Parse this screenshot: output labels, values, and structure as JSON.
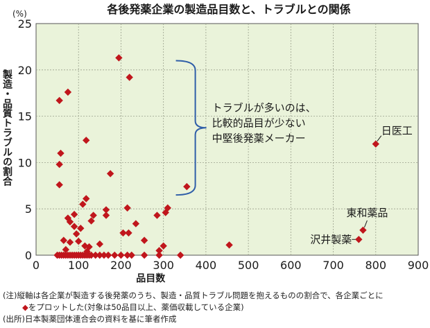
{
  "chart_data": {
    "type": "scatter",
    "title": "各後発薬企業の製造品目数と、トラブルとの関係",
    "xlabel": "品目数",
    "ylabel": "製造・品質トラブルの割合",
    "yunit": "(%)",
    "xlim": [
      0,
      900
    ],
    "ylim": [
      0,
      25
    ],
    "xticks": [
      0,
      100,
      200,
      300,
      400,
      500,
      600,
      700,
      800,
      900
    ],
    "yticks": [
      0,
      5,
      10,
      15,
      20,
      25
    ],
    "grid": true,
    "marker_color": "#c0161c",
    "plot_background": "#eaf3da",
    "annotation_bracket": {
      "lines": [
        "トラブルが多いのは、",
        "比較的品目が少ない",
        "中堅後発薬メーカー"
      ],
      "y_range": [
        6.5,
        21
      ]
    },
    "labeled_points": [
      {
        "label": "日医工",
        "x": 800,
        "y": 12
      },
      {
        "label": "東和薬品",
        "x": 770,
        "y": 2.7
      },
      {
        "label": "沢井製薬",
        "x": 760,
        "y": 1.7
      }
    ],
    "points": [
      {
        "x": 50,
        "y": 0
      },
      {
        "x": 55,
        "y": 0
      },
      {
        "x": 60,
        "y": 0
      },
      {
        "x": 65,
        "y": 0
      },
      {
        "x": 70,
        "y": 0
      },
      {
        "x": 75,
        "y": 0
      },
      {
        "x": 80,
        "y": 0
      },
      {
        "x": 85,
        "y": 0
      },
      {
        "x": 90,
        "y": 0
      },
      {
        "x": 95,
        "y": 0
      },
      {
        "x": 100,
        "y": 0
      },
      {
        "x": 105,
        "y": 0
      },
      {
        "x": 110,
        "y": 0
      },
      {
        "x": 115,
        "y": 0
      },
      {
        "x": 120,
        "y": 0
      },
      {
        "x": 125,
        "y": 0
      },
      {
        "x": 130,
        "y": 0
      },
      {
        "x": 140,
        "y": 0
      },
      {
        "x": 150,
        "y": 0
      },
      {
        "x": 160,
        "y": 0
      },
      {
        "x": 170,
        "y": 0
      },
      {
        "x": 185,
        "y": 0
      },
      {
        "x": 200,
        "y": 0
      },
      {
        "x": 215,
        "y": 0
      },
      {
        "x": 225,
        "y": 0
      },
      {
        "x": 255,
        "y": 0
      },
      {
        "x": 290,
        "y": 0
      },
      {
        "x": 340,
        "y": 0
      },
      {
        "x": 55,
        "y": 16.7
      },
      {
        "x": 75,
        "y": 17.6
      },
      {
        "x": 195,
        "y": 21.3
      },
      {
        "x": 220,
        "y": 19.2
      },
      {
        "x": 118,
        "y": 12.4
      },
      {
        "x": 58,
        "y": 11
      },
      {
        "x": 55,
        "y": 9.8
      },
      {
        "x": 175,
        "y": 8.8
      },
      {
        "x": 55,
        "y": 7.6
      },
      {
        "x": 355,
        "y": 7.4
      },
      {
        "x": 118,
        "y": 6.1
      },
      {
        "x": 110,
        "y": 5.5
      },
      {
        "x": 215,
        "y": 5.1
      },
      {
        "x": 165,
        "y": 4.9
      },
      {
        "x": 310,
        "y": 5.1
      },
      {
        "x": 305,
        "y": 4.6
      },
      {
        "x": 285,
        "y": 4.3
      },
      {
        "x": 90,
        "y": 4.4
      },
      {
        "x": 135,
        "y": 4.3
      },
      {
        "x": 165,
        "y": 4.3
      },
      {
        "x": 75,
        "y": 4.0
      },
      {
        "x": 80,
        "y": 3.6
      },
      {
        "x": 130,
        "y": 3.7
      },
      {
        "x": 235,
        "y": 3.4
      },
      {
        "x": 90,
        "y": 3.1
      },
      {
        "x": 105,
        "y": 2.9
      },
      {
        "x": 205,
        "y": 2.4
      },
      {
        "x": 218,
        "y": 2.4
      },
      {
        "x": 95,
        "y": 2.3
      },
      {
        "x": 65,
        "y": 1.6
      },
      {
        "x": 80,
        "y": 1.4
      },
      {
        "x": 255,
        "y": 1.6
      },
      {
        "x": 115,
        "y": 1.0
      },
      {
        "x": 125,
        "y": 0.9
      },
      {
        "x": 150,
        "y": 1.2
      },
      {
        "x": 300,
        "y": 1.0
      },
      {
        "x": 455,
        "y": 1.1
      },
      {
        "x": 100,
        "y": 1.5
      },
      {
        "x": 70,
        "y": 0.6
      },
      {
        "x": 290,
        "y": 0.5
      },
      {
        "x": 120,
        "y": 0.4
      }
    ]
  },
  "notes": {
    "line1": "(注)縦軸は各企業が製造する後発薬のうち、製造・品質トラブル問題を抱えるものの割合で、各企業ごとに",
    "line2_marker": "◆",
    "line2": "をプロットした(対象は50品目以上、薬価収載している企業)",
    "line3": "(出所)日本製薬団体連合会の資料を基に筆者作成"
  }
}
